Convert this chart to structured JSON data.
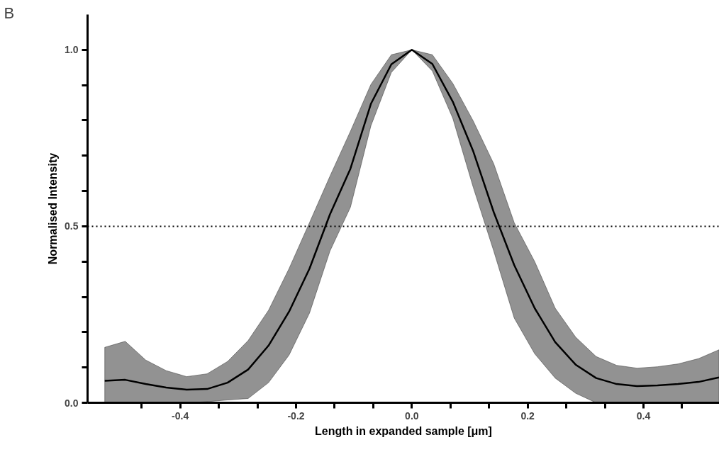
{
  "chart_data": {
    "type": "line",
    "annotations": [
      "B"
    ],
    "xlabel": "Length in expanded sample [μm]",
    "ylabel": "Normalised Intensity",
    "x": [
      -0.5303,
      -0.495,
      -0.4596,
      -0.4243,
      -0.3889,
      -0.3536,
      -0.3182,
      -0.2828,
      -0.2475,
      -0.2121,
      -0.1768,
      -0.1414,
      -0.1061,
      -0.0707,
      -0.0354,
      0,
      0.0354,
      0.0707,
      0.1061,
      0.1414,
      0.1768,
      0.2121,
      0.2475,
      0.2828,
      0.3182,
      0.3536,
      0.3889,
      0.4243,
      0.4596,
      0.495,
      0.5303
    ],
    "series": [
      {
        "color": "#000000",
        "values": [
          0.062,
          0.065,
          0.053,
          0.043,
          0.037,
          0.039,
          0.057,
          0.094,
          0.162,
          0.258,
          0.38,
          0.534,
          0.663,
          0.847,
          0.959,
          1.0,
          0.96,
          0.853,
          0.712,
          0.54,
          0.39,
          0.268,
          0.172,
          0.108,
          0.07,
          0.053,
          0.047,
          0.049,
          0.053,
          0.059,
          0.072
        ],
        "lower": [
          0,
          0,
          0,
          0,
          0,
          0.003,
          0.008,
          0.012,
          0.057,
          0.135,
          0.254,
          0.43,
          0.554,
          0.785,
          0.936,
          1.0,
          0.94,
          0.806,
          0.61,
          0.43,
          0.24,
          0.139,
          0.07,
          0.027,
          0,
          0,
          0,
          0,
          0,
          0,
          0
        ],
        "upper": [
          0.157,
          0.174,
          0.121,
          0.091,
          0.074,
          0.082,
          0.117,
          0.176,
          0.262,
          0.38,
          0.51,
          0.642,
          0.769,
          0.902,
          0.986,
          1.0,
          0.986,
          0.905,
          0.798,
          0.677,
          0.51,
          0.4,
          0.268,
          0.186,
          0.131,
          0.106,
          0.098,
          0.102,
          0.11,
          0.125,
          0.15
        ]
      }
    ],
    "xlim": [
      -0.56,
      0.531
    ],
    "ylim": [
      0,
      1.1
    ],
    "xticks": [
      {
        "value": -0.4667,
        "label": null
      },
      -0.4,
      {
        "value": -0.3333,
        "label": null
      },
      {
        "value": -0.2667,
        "label": null
      },
      -0.2,
      {
        "value": -0.1333,
        "label": null
      },
      {
        "value": -0.0667,
        "label": null
      },
      {
        "value": 0,
        "label": "0.0"
      },
      {
        "value": 0.0667,
        "label": null
      },
      {
        "value": 0.1333,
        "label": null
      },
      0.2,
      {
        "value": 0.2667,
        "label": null
      },
      {
        "value": 0.3333,
        "label": null
      },
      0.4,
      {
        "value": 0.4667,
        "label": null
      }
    ],
    "yticks": [
      {
        "value": 0,
        "label": "0.0"
      },
      {
        "value": 0.1,
        "label": null
      },
      {
        "value": 0.2,
        "label": null
      },
      {
        "value": 0.3,
        "label": null
      },
      {
        "value": 0.4,
        "label": null
      },
      0.5,
      {
        "value": 0.6,
        "label": null
      },
      {
        "value": 0.7,
        "label": null
      },
      {
        "value": 0.8,
        "label": null
      },
      {
        "value": 0.9,
        "label": null
      },
      {
        "value": 1.0,
        "label": "1.0"
      }
    ],
    "ref_lines": [
      {
        "axis": "y",
        "value": 0.5,
        "line_style": "dotted",
        "color": "#000000"
      }
    ],
    "grid": false,
    "marker": "none",
    "line_style": "solid"
  }
}
